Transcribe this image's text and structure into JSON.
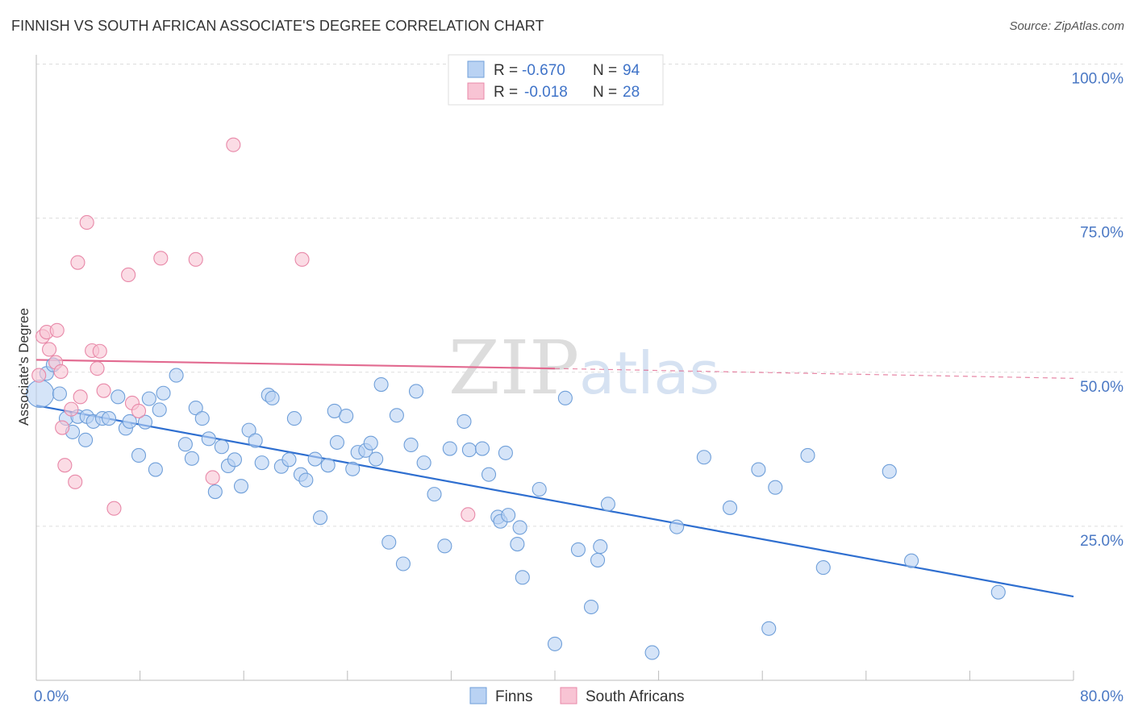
{
  "header": {
    "title": "FINNISH VS SOUTH AFRICAN ASSOCIATE'S DEGREE CORRELATION CHART",
    "source": "Source: ZipAtlas.com"
  },
  "watermark": {
    "zip": "ZIP",
    "atlas": "atlas"
  },
  "colors": {
    "finns_fill": "#b9d2f3",
    "finns_stroke": "#6f9fd9",
    "finns_line": "#2f6fd0",
    "sa_fill": "#f8c4d4",
    "sa_stroke": "#e888a8",
    "sa_line": "#e26a90",
    "grid": "#dddddd",
    "axis": "#bbbbbb",
    "tick_text": "#4a78c4"
  },
  "legend": {
    "rows": [
      {
        "r_label": "R =",
        "r_value": "-0.670",
        "n_label": "N =",
        "n_value": "94",
        "swatch": "finns"
      },
      {
        "r_label": "R =",
        "r_value": "-0.018",
        "n_label": "N =",
        "n_value": "28",
        "swatch": "sa"
      }
    ]
  },
  "bottom_legend": [
    {
      "label": "Finns",
      "swatch": "finns"
    },
    {
      "label": "South Africans",
      "swatch": "sa"
    }
  ],
  "chart_data": {
    "type": "scatter",
    "title": "FINNISH VS SOUTH AFRICAN ASSOCIATE'S DEGREE CORRELATION CHART",
    "ylabel": "Associate's Degree",
    "xlabel": "",
    "xlim": [
      0,
      80
    ],
    "ylim": [
      0,
      100
    ],
    "x_tick_labels": [
      {
        "value": 0,
        "label": "0.0%"
      },
      {
        "value": 80,
        "label": "80.0%"
      }
    ],
    "x_minor_ticks": [
      8,
      16,
      24,
      32,
      40,
      48,
      56,
      64,
      72,
      80
    ],
    "y_ticks": [
      {
        "value": 25,
        "label": "25.0%"
      },
      {
        "value": 50,
        "label": "50.0%"
      },
      {
        "value": 75,
        "label": "75.0%"
      },
      {
        "value": 100,
        "label": "100.0%"
      }
    ],
    "grid": true,
    "legend_position": "top-center",
    "series": [
      {
        "name": "Finns",
        "color": "#b9d2f3",
        "points": [
          [
            0.3,
            46.5
          ],
          [
            0.8,
            49.8
          ],
          [
            1.3,
            51.2
          ],
          [
            1.8,
            46.5
          ],
          [
            2.3,
            42.5
          ],
          [
            2.8,
            40.3
          ],
          [
            3.2,
            42.8
          ],
          [
            3.8,
            39.0
          ],
          [
            3.9,
            42.8
          ],
          [
            4.4,
            42.0
          ],
          [
            5.1,
            42.5
          ],
          [
            5.6,
            42.5
          ],
          [
            6.3,
            46.0
          ],
          [
            6.9,
            40.9
          ],
          [
            7.2,
            42.0
          ],
          [
            7.9,
            36.5
          ],
          [
            8.4,
            41.9
          ],
          [
            8.7,
            45.7
          ],
          [
            9.2,
            34.2
          ],
          [
            9.5,
            43.9
          ],
          [
            9.8,
            46.6
          ],
          [
            10.8,
            49.5
          ],
          [
            11.5,
            38.3
          ],
          [
            12.0,
            36.0
          ],
          [
            12.3,
            44.2
          ],
          [
            12.8,
            42.5
          ],
          [
            13.3,
            39.2
          ],
          [
            13.8,
            30.6
          ],
          [
            14.3,
            37.9
          ],
          [
            14.8,
            34.8
          ],
          [
            15.3,
            35.8
          ],
          [
            15.8,
            31.5
          ],
          [
            16.4,
            40.6
          ],
          [
            16.9,
            38.9
          ],
          [
            17.4,
            35.3
          ],
          [
            17.9,
            46.3
          ],
          [
            18.2,
            45.8
          ],
          [
            18.9,
            34.7
          ],
          [
            19.5,
            35.8
          ],
          [
            19.9,
            42.5
          ],
          [
            20.4,
            33.4
          ],
          [
            20.8,
            32.5
          ],
          [
            21.5,
            35.9
          ],
          [
            21.9,
            26.4
          ],
          [
            22.5,
            34.9
          ],
          [
            23.0,
            43.7
          ],
          [
            23.2,
            38.6
          ],
          [
            23.9,
            42.9
          ],
          [
            24.4,
            34.3
          ],
          [
            24.8,
            37.0
          ],
          [
            25.4,
            37.3
          ],
          [
            25.8,
            38.5
          ],
          [
            26.2,
            35.9
          ],
          [
            26.6,
            48.0
          ],
          [
            27.2,
            22.4
          ],
          [
            27.8,
            43.0
          ],
          [
            28.3,
            18.9
          ],
          [
            28.9,
            38.2
          ],
          [
            29.3,
            46.9
          ],
          [
            29.9,
            35.3
          ],
          [
            30.7,
            30.2
          ],
          [
            31.5,
            21.8
          ],
          [
            31.9,
            37.6
          ],
          [
            33.0,
            42.0
          ],
          [
            33.4,
            37.4
          ],
          [
            34.4,
            37.6
          ],
          [
            34.9,
            33.4
          ],
          [
            35.6,
            26.5
          ],
          [
            35.8,
            25.8
          ],
          [
            36.2,
            36.9
          ],
          [
            36.4,
            26.8
          ],
          [
            37.1,
            22.1
          ],
          [
            37.3,
            24.8
          ],
          [
            37.5,
            16.7
          ],
          [
            38.8,
            31.0
          ],
          [
            40.0,
            5.9
          ],
          [
            40.8,
            45.8
          ],
          [
            41.8,
            21.2
          ],
          [
            42.8,
            11.9
          ],
          [
            43.3,
            19.5
          ],
          [
            43.5,
            21.7
          ],
          [
            44.1,
            28.6
          ],
          [
            49.4,
            24.9
          ],
          [
            51.5,
            36.2
          ],
          [
            53.5,
            28.0
          ],
          [
            55.7,
            34.2
          ],
          [
            56.5,
            8.4
          ],
          [
            57.0,
            31.3
          ],
          [
            59.5,
            36.5
          ],
          [
            60.7,
            18.3
          ],
          [
            65.8,
            33.9
          ],
          [
            67.5,
            19.4
          ],
          [
            74.2,
            14.3
          ],
          [
            47.5,
            4.5
          ]
        ]
      },
      {
        "name": "South Africans",
        "color": "#f8c4d4",
        "points": [
          [
            0.2,
            49.5
          ],
          [
            0.5,
            55.8
          ],
          [
            0.8,
            56.5
          ],
          [
            1.0,
            53.7
          ],
          [
            1.5,
            51.6
          ],
          [
            1.6,
            56.8
          ],
          [
            1.9,
            50.1
          ],
          [
            2.0,
            41.0
          ],
          [
            2.2,
            34.9
          ],
          [
            2.7,
            44.0
          ],
          [
            3.0,
            32.2
          ],
          [
            3.2,
            67.8
          ],
          [
            3.4,
            46.0
          ],
          [
            3.9,
            74.3
          ],
          [
            4.3,
            53.5
          ],
          [
            4.7,
            50.6
          ],
          [
            4.9,
            53.4
          ],
          [
            5.2,
            47.0
          ],
          [
            6.0,
            27.9
          ],
          [
            7.1,
            65.8
          ],
          [
            7.4,
            45.0
          ],
          [
            7.9,
            43.7
          ],
          [
            9.6,
            68.5
          ],
          [
            12.3,
            68.3
          ],
          [
            13.6,
            32.9
          ],
          [
            15.2,
            86.9
          ],
          [
            20.5,
            68.3
          ],
          [
            33.3,
            26.9
          ]
        ]
      }
    ],
    "trendlines": [
      {
        "series": "Finns",
        "from": [
          0,
          44.6
        ],
        "to": [
          80,
          13.6
        ]
      },
      {
        "series": "South Africans",
        "from": [
          0,
          52.0
        ],
        "to": [
          40,
          50.6
        ],
        "dashed_to": [
          80,
          49.0
        ]
      }
    ]
  }
}
